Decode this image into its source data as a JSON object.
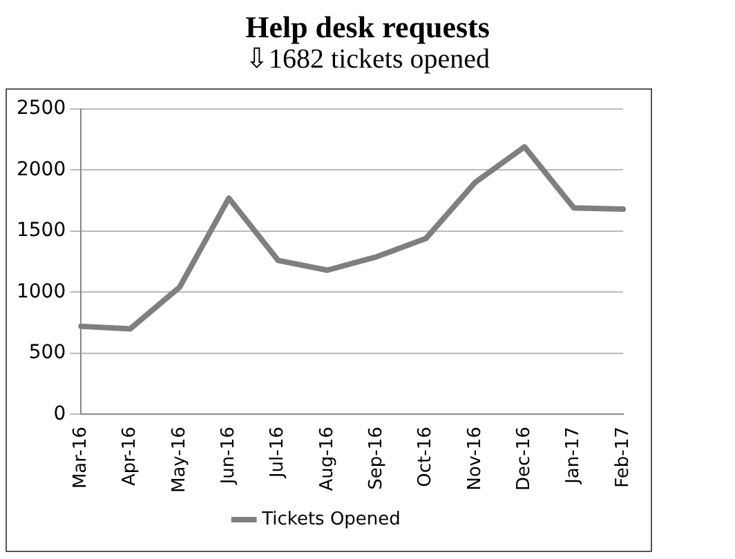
{
  "chart_data": {
    "type": "line",
    "title": "Help desk requests",
    "subtitle": "⇩1682 tickets opened",
    "categories": [
      "Mar-16",
      "Apr-16",
      "May-16",
      "Jun-16",
      "Jul-16",
      "Aug-16",
      "Sep-16",
      "Oct-16",
      "Nov-16",
      "Dec-16",
      "Jan-17",
      "Feb-17"
    ],
    "series": [
      {
        "name": "Tickets Opened",
        "color": "#7f7f7f",
        "values": [
          720,
          700,
          1040,
          1770,
          1260,
          1180,
          1290,
          1440,
          1900,
          2190,
          1690,
          1680
        ]
      }
    ],
    "ylim": [
      0,
      2500
    ],
    "yticks": [
      0,
      500,
      1000,
      1500,
      2000,
      2500
    ],
    "grid": "y",
    "legend": "bottom",
    "marker": "none",
    "line_style": "solid"
  }
}
